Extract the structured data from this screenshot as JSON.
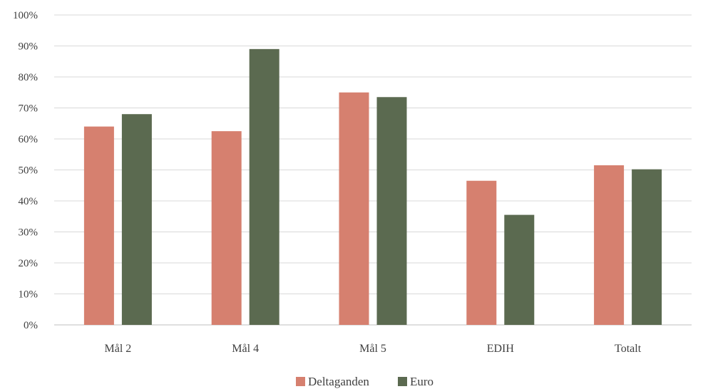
{
  "chart_data": {
    "type": "bar",
    "categories": [
      "Mål 2",
      "Mål 4",
      "Mål 5",
      "EDIH",
      "Totalt"
    ],
    "series": [
      {
        "name": "Deltaganden",
        "color": "#d6806f",
        "values": [
          64,
          62.5,
          75,
          46.5,
          51.5
        ]
      },
      {
        "name": "Euro",
        "color": "#5b6a50",
        "values": [
          68,
          89,
          73.5,
          35.5,
          50.2
        ]
      }
    ],
    "ylim": [
      0,
      100
    ],
    "yticks": [
      "0%",
      "10%",
      "20%",
      "30%",
      "40%",
      "50%",
      "60%",
      "70%",
      "80%",
      "90%",
      "100%"
    ],
    "grid": true,
    "legend": "bottom-center",
    "title": "",
    "xlabel": "",
    "ylabel": ""
  }
}
